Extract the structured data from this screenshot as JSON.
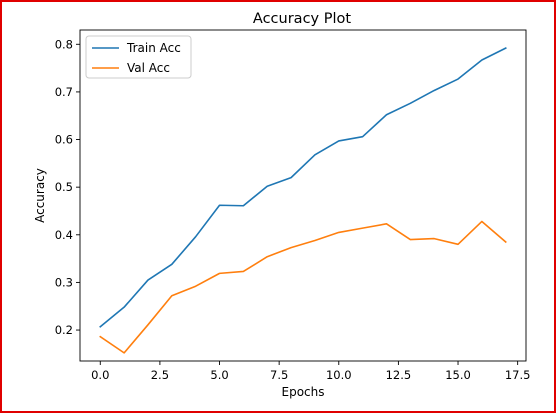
{
  "chart_data": {
    "type": "line",
    "title": "Accuracy Plot",
    "xlabel": "Epochs",
    "ylabel": "Accuracy",
    "x": [
      0,
      1,
      2,
      3,
      4,
      5,
      6,
      7,
      8,
      9,
      10,
      11,
      12,
      13,
      14,
      15,
      16,
      17
    ],
    "xlim": [
      -0.85,
      17.85
    ],
    "ylim": [
      0.135,
      0.83
    ],
    "xticks": [
      0.0,
      2.5,
      5.0,
      7.5,
      10.0,
      12.5,
      15.0,
      17.5
    ],
    "xtick_labels": [
      "0.0",
      "2.5",
      "5.0",
      "7.5",
      "10.0",
      "12.5",
      "15.0",
      "17.5"
    ],
    "yticks": [
      0.2,
      0.3,
      0.4,
      0.5,
      0.6,
      0.7,
      0.8
    ],
    "ytick_labels": [
      "0.2",
      "0.3",
      "0.4",
      "0.5",
      "0.6",
      "0.7",
      "0.8"
    ],
    "grid": false,
    "legend_position": "top-left",
    "series": [
      {
        "name": "Train Acc",
        "color": "#1f77b4",
        "values": [
          0.207,
          0.248,
          0.305,
          0.338,
          0.396,
          0.462,
          0.461,
          0.502,
          0.52,
          0.568,
          0.597,
          0.606,
          0.652,
          0.676,
          0.703,
          0.727,
          0.767,
          0.792
        ]
      },
      {
        "name": "Val Acc",
        "color": "#ff7f0e",
        "values": [
          0.186,
          0.152,
          0.211,
          0.272,
          0.292,
          0.319,
          0.323,
          0.354,
          0.373,
          0.388,
          0.405,
          0.414,
          0.423,
          0.39,
          0.392,
          0.38,
          0.428,
          0.385
        ]
      }
    ]
  }
}
